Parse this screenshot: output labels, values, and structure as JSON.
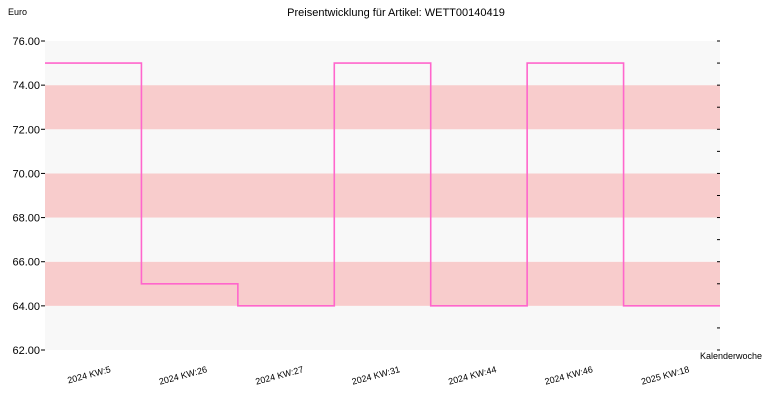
{
  "chart_data": {
    "type": "line",
    "step": true,
    "title": "Preisentwicklung für Artikel: WETT00140419",
    "ylabel": "Euro",
    "xlabel": "Kalenderwoche",
    "ylim": [
      62.0,
      76.0
    ],
    "yticks": [
      "62.00",
      "64.00",
      "66.00",
      "68.00",
      "70.00",
      "72.00",
      "74.00",
      "76.00"
    ],
    "categories": [
      "2024 KW:5",
      "2024 KW:26",
      "2024 KW:27",
      "2024 KW:31",
      "2024 KW:44",
      "2024 KW:46",
      "2025 KW:18"
    ],
    "series": [
      {
        "values": [
          75.0,
          65.0,
          64.0,
          75.0,
          64.0,
          75.0,
          64.0
        ]
      }
    ],
    "band_colors": [
      "#f8f8f8",
      "#f8cccc"
    ],
    "line_color": "#ff66cc",
    "grid": false
  }
}
